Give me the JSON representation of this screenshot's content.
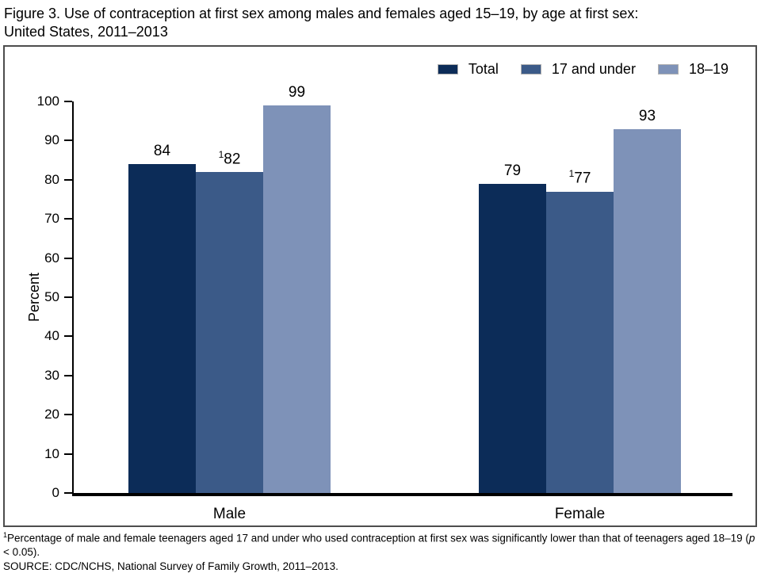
{
  "title": {
    "line1": "Figure 3. Use of contraception at first sex among males and females aged 15–19, by age at first sex:",
    "line2": "United States, 2011–2013"
  },
  "chart_data": {
    "type": "bar",
    "categories": [
      "Male",
      "Female"
    ],
    "series": [
      {
        "name": "Total",
        "color": "#0c2c58",
        "values": [
          84,
          79
        ],
        "value_labels": [
          {
            "sup": "",
            "text": "84"
          },
          {
            "sup": "",
            "text": "79"
          }
        ]
      },
      {
        "name": "17 and under",
        "color": "#3b5a88",
        "values": [
          82,
          77
        ],
        "value_labels": [
          {
            "sup": "1",
            "text": "82"
          },
          {
            "sup": "1",
            "text": "77"
          }
        ]
      },
      {
        "name": "18–19",
        "color": "#7e92b8",
        "values": [
          99,
          93
        ],
        "value_labels": [
          {
            "sup": "",
            "text": "99"
          },
          {
            "sup": "",
            "text": "93"
          }
        ]
      }
    ],
    "xlabel": "",
    "ylabel": "Percent",
    "ylim": [
      0,
      100
    ],
    "yticks": [
      0,
      10,
      20,
      30,
      40,
      50,
      60,
      70,
      80,
      90,
      100
    ],
    "grid": false,
    "legend_position": "top-right"
  },
  "footnotes": {
    "note": {
      "sup": "1",
      "before_p": "Percentage of male and female teenagers aged 17 and under who used contraception at first sex was significantly lower than that of teenagers aged 18–19 (",
      "p": "p",
      "after_p": " < 0.05)."
    },
    "source": "SOURCE: CDC/NCHS, National Survey of Family Growth, 2011–2013."
  }
}
